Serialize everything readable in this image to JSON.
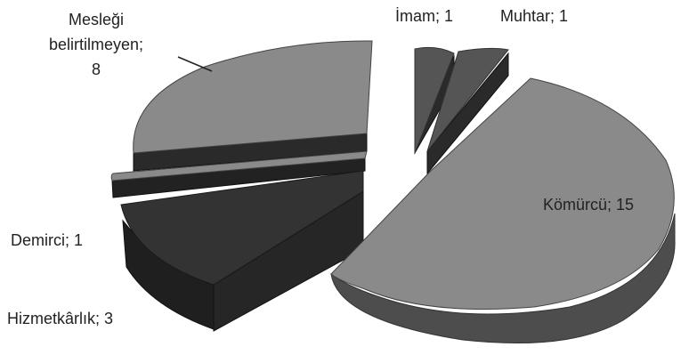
{
  "chart_data": {
    "type": "pie",
    "title": "",
    "slices": [
      {
        "name": "Kömürcü",
        "value": 15,
        "label": "Kömürcü; 15",
        "exploded": true
      },
      {
        "name": "Hizmetkârlık",
        "value": 3,
        "label": "Hizmetkârlık; 3",
        "exploded": false
      },
      {
        "name": "Demirci",
        "value": 1,
        "label": "Demirci; 1",
        "exploded": false
      },
      {
        "name": "Mesleği belirtilmeyen",
        "value": 8,
        "label_lines": [
          "Mesleği",
          "belirtilmeyen;",
          "8"
        ],
        "exploded": false
      },
      {
        "name": "İmam",
        "value": 1,
        "label": "İmam; 1",
        "exploded": true
      },
      {
        "name": "Muhtar",
        "value": 1,
        "label": "Muhtar; 1",
        "exploded": true
      }
    ],
    "colors": {
      "light_top": "#8a8a8a",
      "light_side": "#4a4a4a",
      "dark_top": "#333333",
      "dark_side": "#1f1f1f"
    },
    "legend": "none",
    "style": "3d exploded pie, grayscale"
  }
}
